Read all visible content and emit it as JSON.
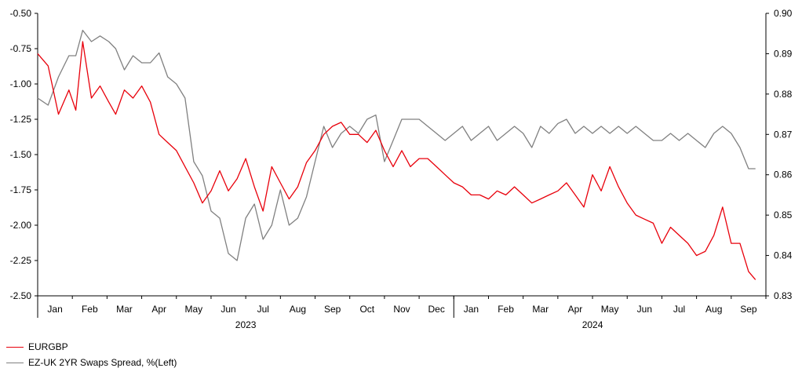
{
  "chart_data": {
    "type": "line",
    "title": "",
    "left_axis": {
      "ticks": [
        "-0.50",
        "-0.75",
        "-1.00",
        "-1.25",
        "-1.50",
        "-1.75",
        "-2.00",
        "-2.25",
        "-2.50"
      ],
      "range": [
        -2.5,
        -0.5
      ]
    },
    "right_axis": {
      "ticks": [
        "0.90",
        "0.89",
        "0.88",
        "0.87",
        "0.86",
        "0.85",
        "0.84",
        "0.83"
      ],
      "range": [
        0.83,
        0.9
      ]
    },
    "x_axis": {
      "months": [
        "Jan",
        "Feb",
        "Mar",
        "Apr",
        "May",
        "Jun",
        "Jul",
        "Aug",
        "Sep",
        "Oct",
        "Nov",
        "Dec",
        "Jan",
        "Feb",
        "Mar",
        "Apr",
        "May",
        "Jun",
        "Jul",
        "Aug",
        "Sep"
      ],
      "years": [
        {
          "label": "2023",
          "month_index": 6
        },
        {
          "label": "2024",
          "month_index": 16
        }
      ],
      "year_divider_index": 12
    },
    "series": [
      {
        "name": "EURGBP",
        "axis": "right",
        "color": "#e8000b",
        "x": [
          0.0,
          0.3,
          0.6,
          0.9,
          1.1,
          1.3,
          1.55,
          1.8,
          2.05,
          2.25,
          2.5,
          2.75,
          3.0,
          3.25,
          3.5,
          3.75,
          4.0,
          4.25,
          4.5,
          4.75,
          5.0,
          5.25,
          5.5,
          5.75,
          6.0,
          6.25,
          6.5,
          6.75,
          7.0,
          7.25,
          7.5,
          7.75,
          8.0,
          8.25,
          8.5,
          8.75,
          9.0,
          9.25,
          9.5,
          9.75,
          10.0,
          10.25,
          10.5,
          10.75,
          11.0,
          11.25,
          11.5,
          11.75,
          12.0,
          12.25,
          12.5,
          12.75,
          13.0,
          13.25,
          13.5,
          13.75,
          14.0,
          14.25,
          14.5,
          14.75,
          15.0,
          15.25,
          15.5,
          15.75,
          16.0,
          16.25,
          16.5,
          16.75,
          17.0,
          17.25,
          17.5,
          17.75,
          18.0,
          18.25,
          18.5,
          18.75,
          19.0,
          19.25,
          19.5,
          19.75,
          20.0,
          20.25,
          20.5,
          20.7
        ],
        "values": [
          0.89,
          0.887,
          0.875,
          0.881,
          0.876,
          0.893,
          0.879,
          0.882,
          0.878,
          0.875,
          0.881,
          0.879,
          0.882,
          0.878,
          0.87,
          0.868,
          0.866,
          0.862,
          0.858,
          0.853,
          0.856,
          0.861,
          0.856,
          0.859,
          0.864,
          0.857,
          0.851,
          0.862,
          0.858,
          0.854,
          0.857,
          0.863,
          0.866,
          0.87,
          0.872,
          0.873,
          0.87,
          0.87,
          0.868,
          0.871,
          0.866,
          0.862,
          0.866,
          0.862,
          0.864,
          0.864,
          0.862,
          0.86,
          0.858,
          0.857,
          0.855,
          0.855,
          0.854,
          0.856,
          0.855,
          0.857,
          0.855,
          0.853,
          0.854,
          0.855,
          0.856,
          0.858,
          0.855,
          0.852,
          0.86,
          0.856,
          0.862,
          0.857,
          0.853,
          0.85,
          0.849,
          0.848,
          0.843,
          0.847,
          0.845,
          0.843,
          0.84,
          0.841,
          0.845,
          0.852,
          0.843,
          0.843,
          0.836,
          0.834
        ]
      },
      {
        "name": "EZ-UK 2YR Swaps Spread, %(Left)",
        "axis": "left",
        "color": "#808080",
        "x": [
          0.0,
          0.3,
          0.6,
          0.9,
          1.1,
          1.3,
          1.55,
          1.8,
          2.05,
          2.25,
          2.5,
          2.75,
          3.0,
          3.25,
          3.5,
          3.75,
          4.0,
          4.25,
          4.5,
          4.75,
          5.0,
          5.25,
          5.5,
          5.75,
          6.0,
          6.25,
          6.5,
          6.75,
          7.0,
          7.25,
          7.5,
          7.75,
          8.0,
          8.25,
          8.5,
          8.75,
          9.0,
          9.25,
          9.5,
          9.75,
          10.0,
          10.25,
          10.5,
          10.75,
          11.0,
          11.25,
          11.5,
          11.75,
          12.0,
          12.25,
          12.5,
          12.75,
          13.0,
          13.25,
          13.5,
          13.75,
          14.0,
          14.25,
          14.5,
          14.75,
          15.0,
          15.25,
          15.5,
          15.75,
          16.0,
          16.25,
          16.5,
          16.75,
          17.0,
          17.25,
          17.5,
          17.75,
          18.0,
          18.25,
          18.5,
          18.75,
          19.0,
          19.25,
          19.5,
          19.75,
          20.0,
          20.25,
          20.5,
          20.7
        ],
        "values": [
          -1.1,
          -1.15,
          -0.95,
          -0.8,
          -0.8,
          -0.62,
          -0.7,
          -0.66,
          -0.7,
          -0.75,
          -0.9,
          -0.8,
          -0.85,
          -0.85,
          -0.78,
          -0.95,
          -1.0,
          -1.1,
          -1.55,
          -1.65,
          -1.9,
          -1.95,
          -2.2,
          -2.25,
          -1.95,
          -1.85,
          -2.1,
          -2.0,
          -1.75,
          -2.0,
          -1.95,
          -1.8,
          -1.55,
          -1.3,
          -1.45,
          -1.35,
          -1.3,
          -1.35,
          -1.25,
          -1.22,
          -1.55,
          -1.4,
          -1.25,
          -1.25,
          -1.25,
          -1.3,
          -1.35,
          -1.4,
          -1.35,
          -1.3,
          -1.4,
          -1.35,
          -1.3,
          -1.4,
          -1.35,
          -1.3,
          -1.35,
          -1.45,
          -1.3,
          -1.35,
          -1.28,
          -1.25,
          -1.35,
          -1.3,
          -1.35,
          -1.3,
          -1.35,
          -1.3,
          -1.35,
          -1.3,
          -1.35,
          -1.4,
          -1.4,
          -1.35,
          -1.4,
          -1.35,
          -1.4,
          -1.45,
          -1.35,
          -1.3,
          -1.35,
          -1.45,
          -1.6,
          -1.6
        ]
      }
    ]
  }
}
